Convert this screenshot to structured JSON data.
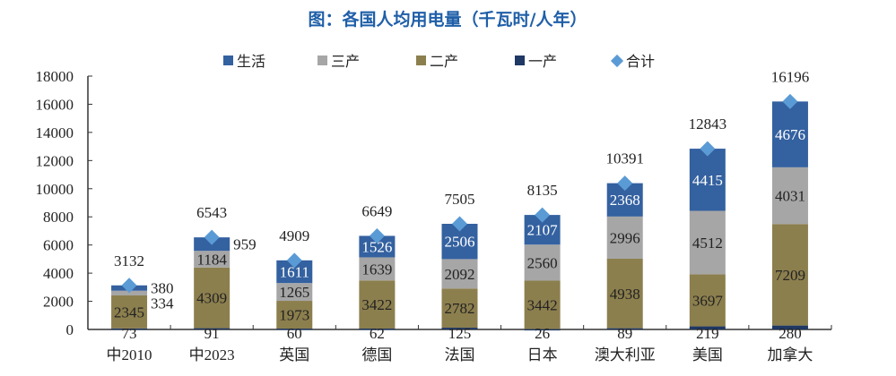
{
  "chart_data": {
    "type": "bar",
    "stacked": true,
    "title": "图：各国人均用电量（千瓦时/人年）",
    "categories": [
      "中2010",
      "中2023",
      "英国",
      "德国",
      "法国",
      "日本",
      "澳大利亚",
      "美国",
      "加拿大"
    ],
    "series": [
      {
        "name": "一产",
        "color": "#1F3864",
        "values": [
          73,
          91,
          60,
          62,
          125,
          26,
          89,
          219,
          280
        ]
      },
      {
        "name": "二产",
        "color": "#8C7F4E",
        "values": [
          2345,
          4309,
          1973,
          3422,
          2782,
          3442,
          4938,
          3697,
          7209
        ]
      },
      {
        "name": "三产",
        "color": "#A6A6A6",
        "values": [
          334,
          1184,
          1265,
          1639,
          2092,
          2560,
          2996,
          4512,
          4031
        ]
      },
      {
        "name": "生活",
        "color": "#3461A0",
        "values": [
          380,
          959,
          1611,
          1526,
          2506,
          2107,
          2368,
          4415,
          4676
        ]
      }
    ],
    "total": {
      "name": "合计",
      "color": "#5B9BD5",
      "values": [
        3132,
        6543,
        4909,
        6649,
        7505,
        8135,
        10391,
        12843,
        16196
      ]
    },
    "legend_order": [
      "生活",
      "三产",
      "二产",
      "一产",
      "合计"
    ],
    "legend_placement": "top",
    "ylim": [
      0,
      18000
    ],
    "yticks": [
      0,
      2000,
      4000,
      6000,
      8000,
      10000,
      12000,
      14000,
      16000,
      18000
    ],
    "xlabel": "",
    "ylabel": "",
    "grid": false
  }
}
